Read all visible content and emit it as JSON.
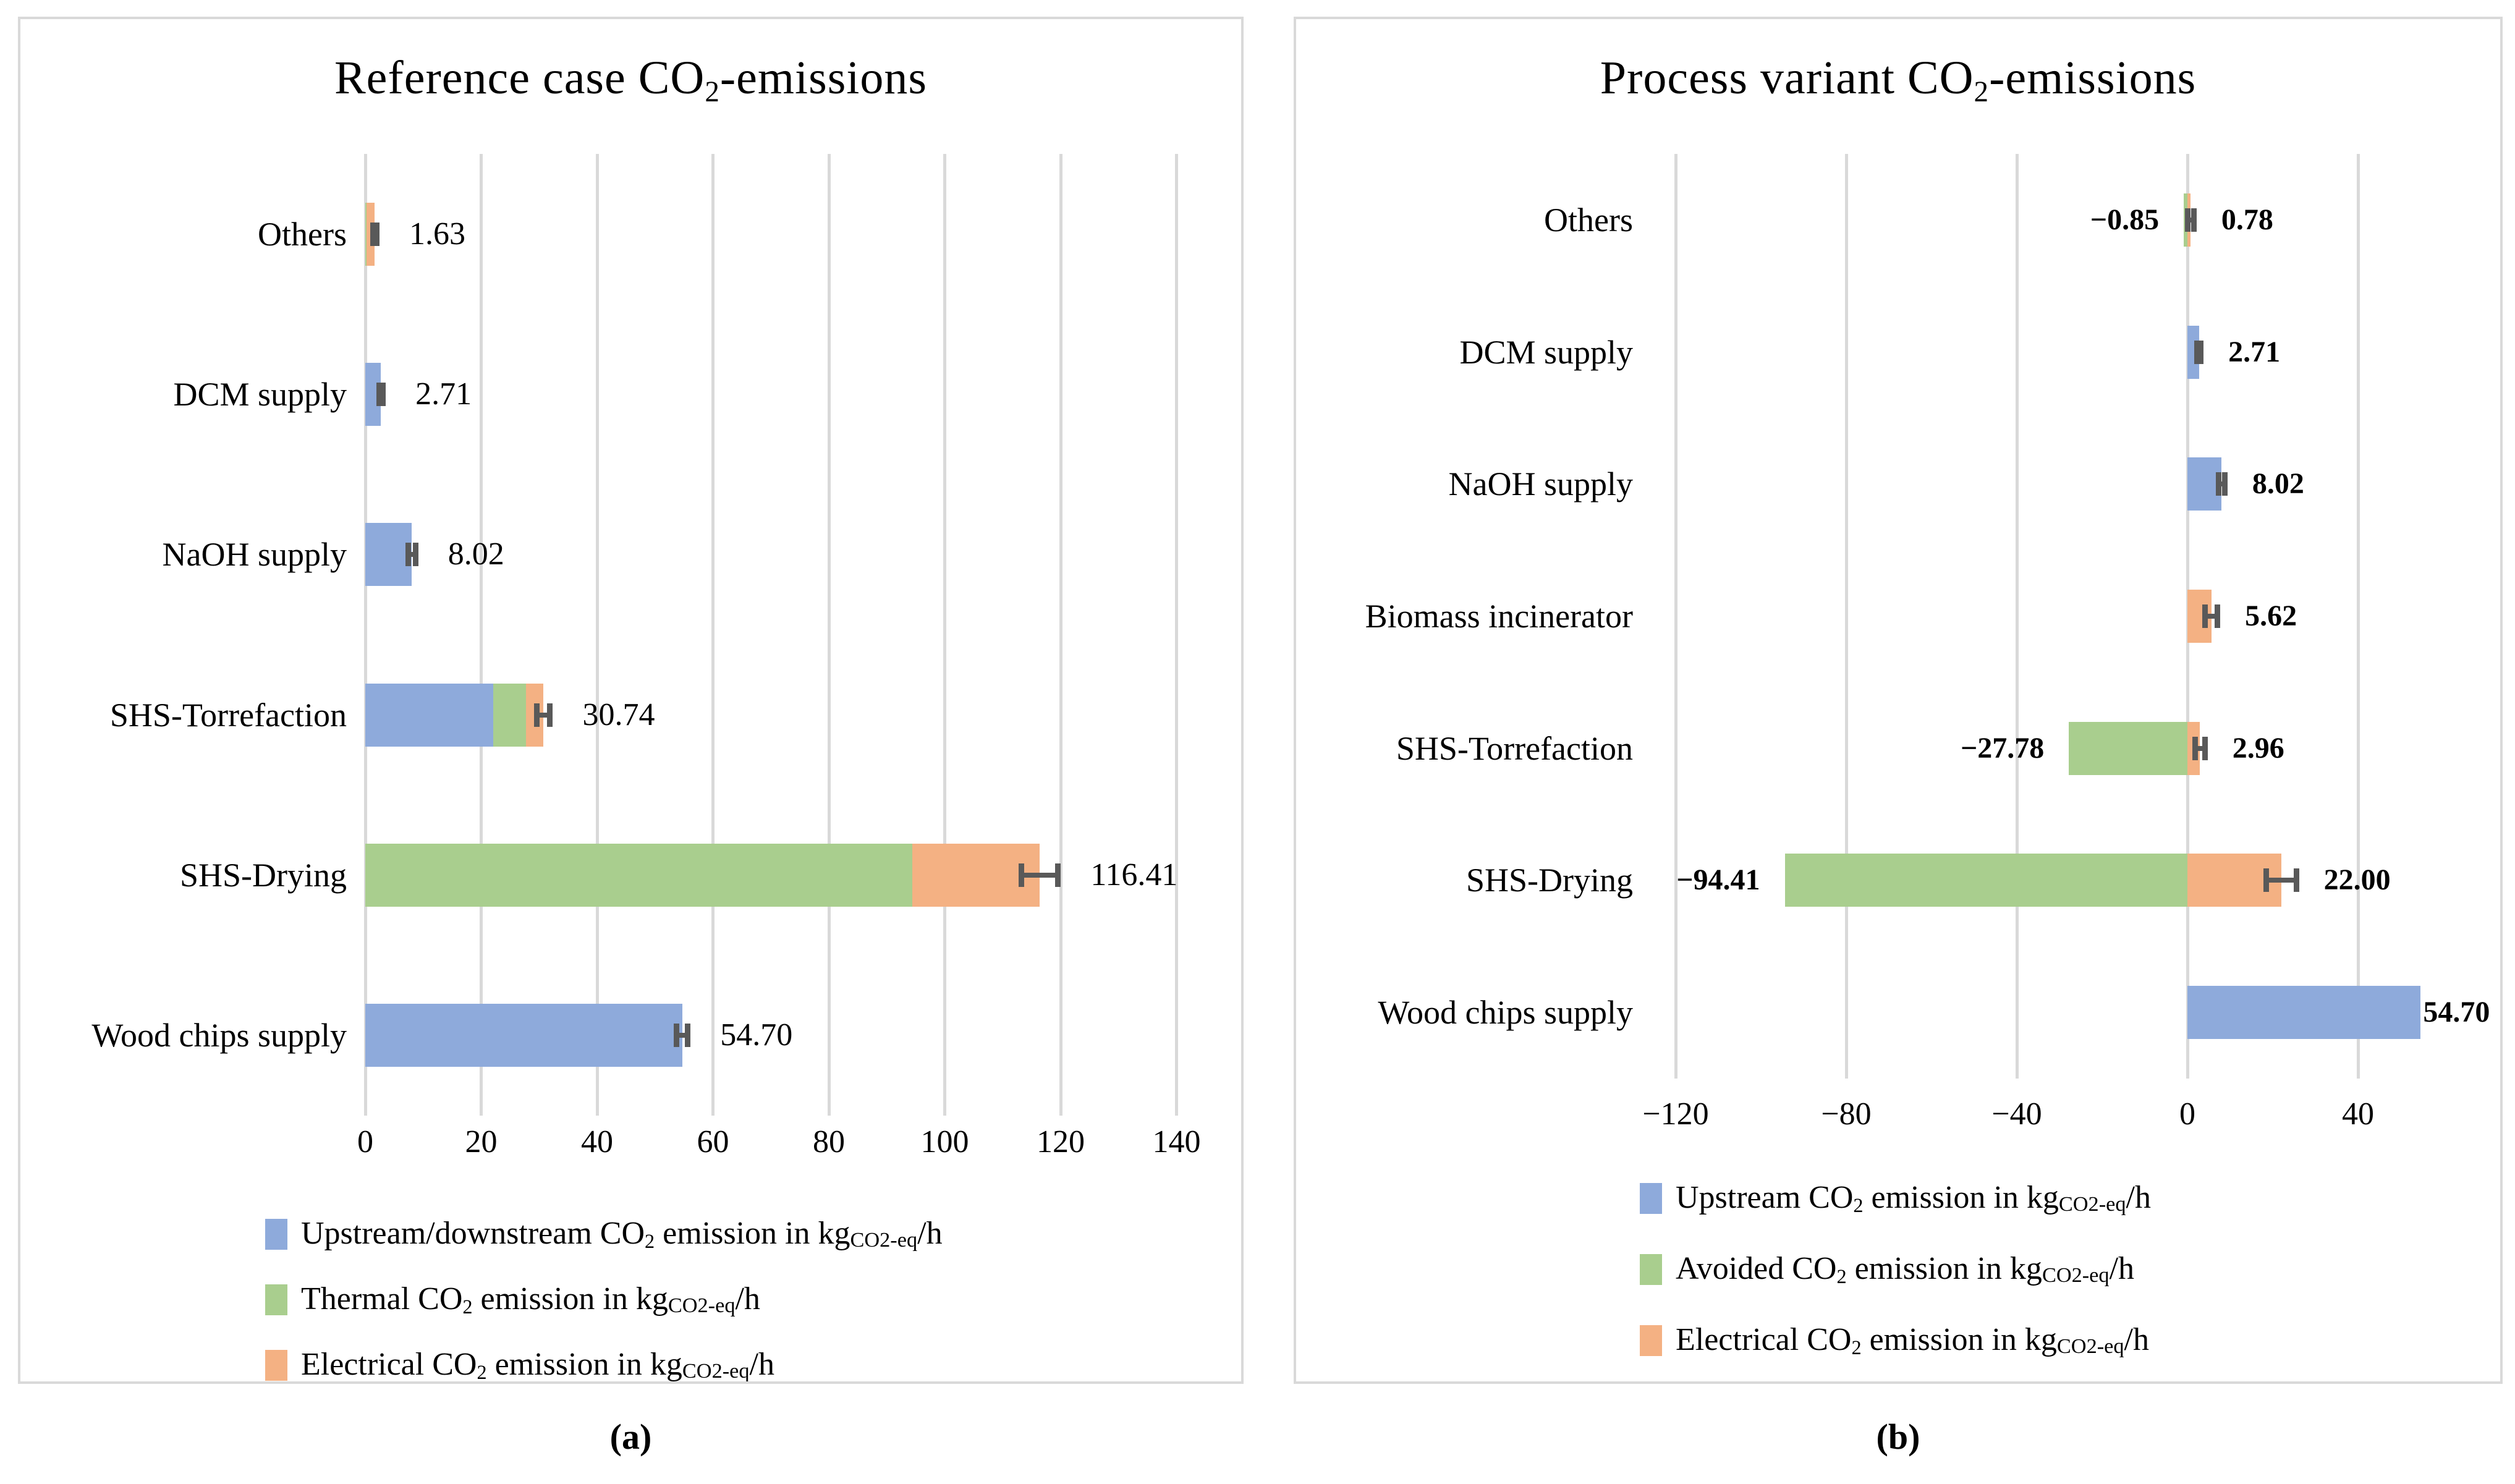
{
  "colors": {
    "blue": "#8EAADB",
    "green": "#A9CE8E",
    "orange": "#F4B183",
    "grid": "#D9D9D9",
    "error_bar": "#595959",
    "panel_border": "#D9D9D9",
    "text": "#000000"
  },
  "captions": {
    "a": "(a)",
    "b": "(b)"
  },
  "chart_data": [
    {
      "id": "a",
      "type": "bar",
      "orientation": "horizontal",
      "stacked": true,
      "grid": true,
      "title": {
        "pre": "Reference case CO",
        "sub": "2",
        "post": "-emissions"
      },
      "categories": [
        "Others",
        "DCM supply",
        "NaOH supply",
        "SHS-Torrefaction",
        "SHS-Drying",
        "Wood chips supply"
      ],
      "series": [
        {
          "name": "Upstream/downstream CO2 emission in kgCO2-eq/h",
          "color_key": "blue",
          "values": [
            0,
            2.71,
            8.02,
            22.06,
            0,
            54.7
          ]
        },
        {
          "name": "Thermal CO2 emission in kgCO2-eq/h",
          "color_key": "green",
          "values": [
            0.2,
            0,
            0,
            5.72,
            94.41,
            0
          ]
        },
        {
          "name": "Electrical CO2 emission in kgCO2-eq/h",
          "color_key": "orange",
          "values": [
            1.43,
            0,
            0,
            2.96,
            22.0,
            0
          ]
        }
      ],
      "totals": [
        1.63,
        2.71,
        8.02,
        30.74,
        116.41,
        54.7
      ],
      "value_labels": [
        "1.63",
        "2.71",
        "8.02",
        "30.74",
        "116.41",
        "54.70"
      ],
      "neg_value_labels": [
        null,
        null,
        null,
        null,
        null,
        null
      ],
      "errors": [
        0.4,
        0.4,
        0.7,
        1.2,
        3.2,
        1.0
      ],
      "label_offsets": [
        null,
        null,
        null,
        null,
        null,
        null
      ],
      "axis": {
        "min": 0,
        "max": 148,
        "ticks": [
          {
            "value": 0,
            "label": "0"
          },
          {
            "value": 20,
            "label": "20"
          },
          {
            "value": 40,
            "label": "40"
          },
          {
            "value": 60,
            "label": "60"
          },
          {
            "value": 80,
            "label": "80"
          },
          {
            "value": 100,
            "label": "100"
          },
          {
            "value": 120,
            "label": "120"
          },
          {
            "value": 140,
            "label": "140"
          }
        ]
      },
      "legend": [
        {
          "color_key": "blue",
          "pre": "Upstream/downstream CO",
          "sub": "2",
          "mid": " emission in kg",
          "unit_sub": "CO2-eq",
          "post": "/h"
        },
        {
          "color_key": "green",
          "pre": "Thermal CO",
          "sub": "2",
          "mid": " emission in kg",
          "unit_sub": "CO2-eq",
          "post": "/h"
        },
        {
          "color_key": "orange",
          "pre": "Electrical CO",
          "sub": "2",
          "mid": " emission in kg",
          "unit_sub": "CO2-eq",
          "post": "/h"
        }
      ]
    },
    {
      "id": "b",
      "type": "bar",
      "orientation": "horizontal",
      "stacked": true,
      "grid": true,
      "title": {
        "pre": "Process variant CO",
        "sub": "2",
        "post": "-emissions"
      },
      "categories": [
        "Others",
        "DCM supply",
        "NaOH supply",
        "Biomass incinerator",
        "SHS-Torrefaction",
        "SHS-Drying",
        "Wood chips supply"
      ],
      "series": [
        {
          "name": "Upstream CO2 emission in kgCO2-eq/h",
          "color_key": "blue",
          "values": [
            0,
            2.71,
            8.02,
            0,
            0,
            0,
            54.7
          ]
        },
        {
          "name": "Avoided CO2 emission in kgCO2-eq/h",
          "color_key": "green",
          "values": [
            -0.85,
            0,
            0,
            0,
            -27.78,
            -94.41,
            0
          ]
        },
        {
          "name": "Electrical CO2 emission in kgCO2-eq/h",
          "color_key": "orange",
          "values": [
            0.78,
            0,
            0,
            5.62,
            2.96,
            22.0,
            0
          ]
        }
      ],
      "totals": [
        0.78,
        2.71,
        8.02,
        5.62,
        2.96,
        22.0,
        54.7
      ],
      "value_labels": [
        "0.78",
        "2.71",
        "8.02",
        "5.62",
        "2.96",
        "22.00",
        "54.70"
      ],
      "neg_value_labels": [
        "−0.85",
        null,
        null,
        null,
        "−27.78",
        "−94.41",
        null
      ],
      "errors": [
        0.8,
        0.5,
        0.8,
        1.5,
        1.2,
        3.6,
        null
      ],
      "label_offsets": [
        null,
        null,
        null,
        null,
        null,
        null,
        4
      ],
      "axis": {
        "min": -145,
        "max": 75,
        "ticks": [
          {
            "value": -120,
            "label": "−120"
          },
          {
            "value": -80,
            "label": "−80"
          },
          {
            "value": -40,
            "label": "−40"
          },
          {
            "value": 0,
            "label": "0"
          },
          {
            "value": 40,
            "label": "40"
          }
        ]
      },
      "legend": [
        {
          "color_key": "blue",
          "pre": "Upstream CO",
          "sub": "2",
          "mid": " emission in kg",
          "unit_sub": "CO2-eq",
          "post": "/h"
        },
        {
          "color_key": "green",
          "pre": "Avoided CO",
          "sub": "2",
          "mid": " emission in kg",
          "unit_sub": "CO2-eq",
          "post": "/h"
        },
        {
          "color_key": "orange",
          "pre": "Electrical CO",
          "sub": "2",
          "mid": " emission in kg",
          "unit_sub": "CO2-eq",
          "post": "/h"
        }
      ]
    }
  ]
}
